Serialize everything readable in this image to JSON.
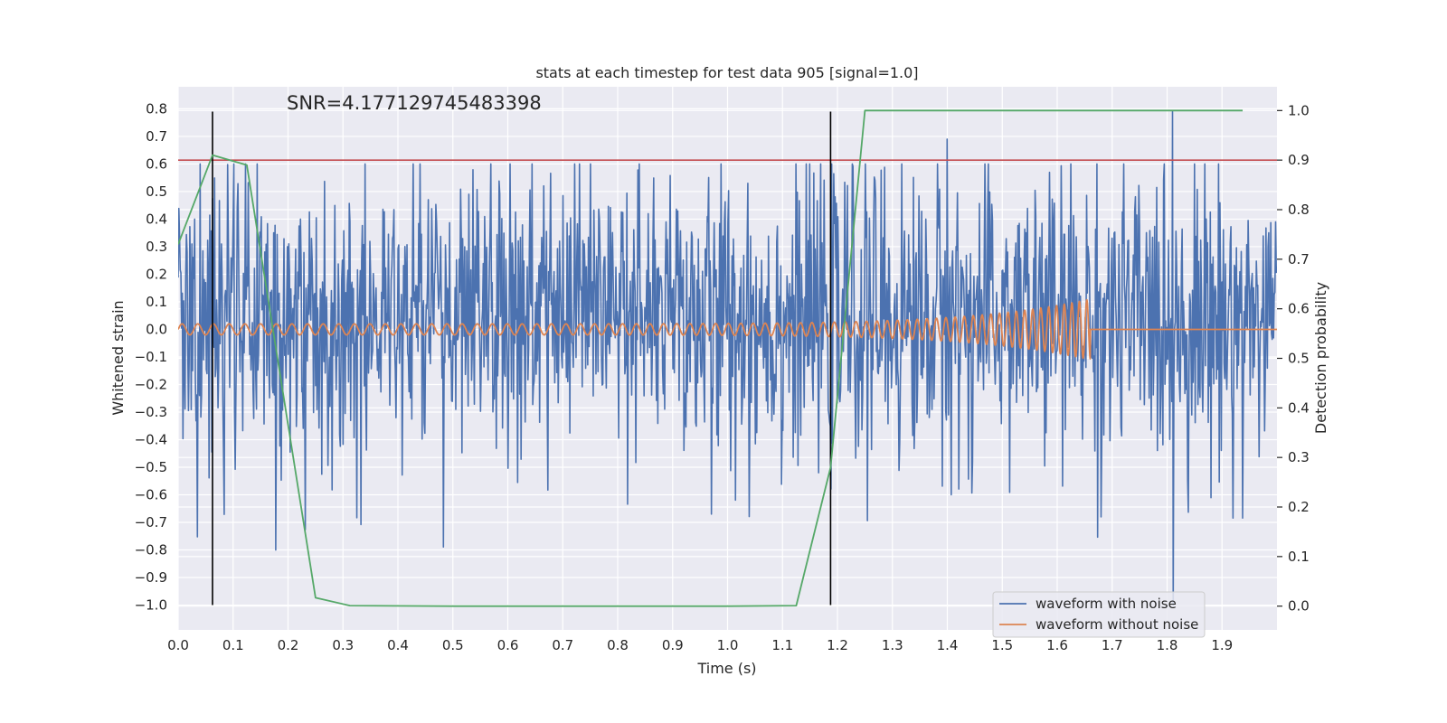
{
  "chart_data": {
    "type": "line",
    "title": "stats at each timestep for test data 905 [signal=1.0]",
    "xlabel": "Time (s)",
    "ylabel": "Whitened strain",
    "y2label": "Detection probability",
    "annotation": "SNR=4.177129745483398",
    "xlim": [
      0.0,
      2.0
    ],
    "ylim": [
      -1.09,
      0.88
    ],
    "y2lim": [
      -0.048,
      1.048
    ],
    "x_ticks": [
      "0.0",
      "0.1",
      "0.2",
      "0.3",
      "0.4",
      "0.5",
      "0.6",
      "0.7",
      "0.8",
      "0.9",
      "1.0",
      "1.1",
      "1.2",
      "1.3",
      "1.4",
      "1.5",
      "1.6",
      "1.7",
      "1.8",
      "1.9"
    ],
    "y_ticks": [
      "0.8",
      "0.7",
      "0.6",
      "0.5",
      "0.4",
      "0.3",
      "0.2",
      "0.1",
      "0.0",
      "−0.1",
      "−0.2",
      "−0.3",
      "−0.4",
      "−0.5",
      "−0.6",
      "−0.7",
      "−0.8",
      "−0.9",
      "−1.0"
    ],
    "y2_ticks": [
      "1.0",
      "0.9",
      "0.8",
      "0.7",
      "0.6",
      "0.5",
      "0.4",
      "0.3",
      "0.2",
      "0.1",
      "0.0"
    ],
    "grid": true,
    "legend_position": "lower-right",
    "series": [
      {
        "name": "waveform with noise",
        "color": "#4c72b0",
        "kind": "noise",
        "x_range": [
          0.0,
          2.0
        ],
        "samples": 1600,
        "amplitude_range": [
          -1.0,
          0.8
        ],
        "typical_amplitude": 0.35,
        "notable_peaks": [
          [
            0.04,
            0.6
          ],
          [
            0.75,
            0.6
          ],
          [
            1.4,
            0.69
          ],
          [
            1.81,
            0.79
          ],
          [
            1.81,
            -1.0
          ],
          [
            0.97,
            -0.67
          ],
          [
            1.68,
            -0.68
          ]
        ]
      },
      {
        "name": "waveform without noise",
        "color": "#dd8452",
        "kind": "chirp",
        "x_range": [
          0.0,
          1.66
        ],
        "amplitude_start": 0.02,
        "amplitude_peak": 0.11,
        "freq_start_hz": 35,
        "freq_end_hz": 75,
        "merger_time": 1.66
      },
      {
        "name": "",
        "color": "#55a868",
        "axis": "right",
        "x": [
          0.0,
          0.0625,
          0.125,
          0.25,
          0.3125,
          0.5,
          0.75,
          1.0,
          1.125,
          1.1875,
          1.25,
          1.5,
          1.75,
          1.9375
        ],
        "values": [
          0.73,
          0.91,
          0.89,
          0.017,
          0.001,
          0.0,
          0.0,
          0.0,
          0.001,
          0.28,
          1.0,
          1.0,
          1.0,
          1.0
        ]
      }
    ],
    "threshold": {
      "value": 0.9,
      "axis": "right",
      "color": "#c44e52"
    },
    "vlines": {
      "x": [
        0.0625,
        1.1875
      ],
      "color": "#000000",
      "y_range": [
        -1.0,
        0.79
      ]
    },
    "colors": {
      "axes_bg": "#eaeaf2",
      "grid": "#ffffff",
      "text": "#262626"
    }
  }
}
